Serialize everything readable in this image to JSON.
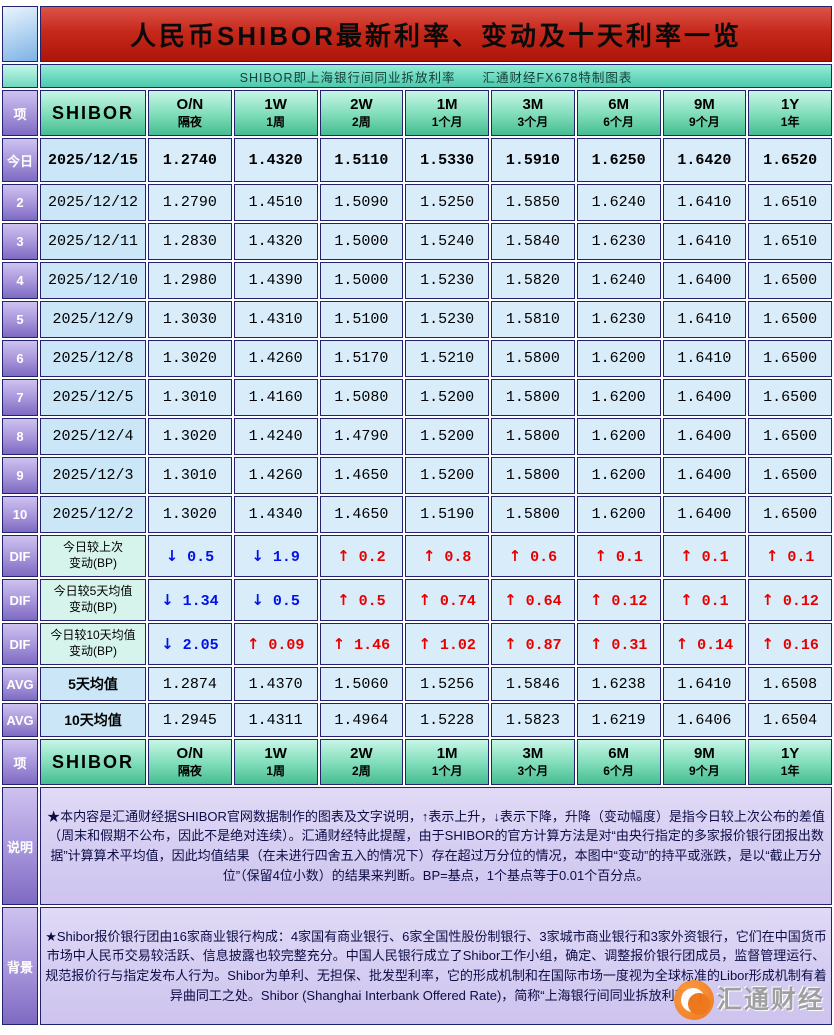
{
  "title": "人民币SHIBOR最新利率、变动及十天利率一览",
  "subtitle": "SHIBOR即上海银行间同业拆放利率　　汇通财经FX678特制图表",
  "labels": {
    "corner": "项",
    "shibor": "SHIBOR"
  },
  "colors": {
    "up_red": "#e80000",
    "down_blue": "#0012e8",
    "title_red": "#c5291c",
    "header_teal": "#46bd92",
    "label_purple": "#7e6ac2",
    "cell_blue": "#d8ecf9",
    "watermark_orange": "#ef7412"
  },
  "chart_data": {
    "type": "table",
    "title": "人民币SHIBOR最新利率、变动及十天利率一览",
    "tenors": [
      {
        "code": "O/N",
        "name": "隔夜"
      },
      {
        "code": "1W",
        "name": "1周"
      },
      {
        "code": "2W",
        "name": "2周"
      },
      {
        "code": "1M",
        "name": "1个月"
      },
      {
        "code": "3M",
        "name": "3个月"
      },
      {
        "code": "6M",
        "name": "6个月"
      },
      {
        "code": "9M",
        "name": "9个月"
      },
      {
        "code": "1Y",
        "name": "1年"
      }
    ],
    "rate_rows": [
      {
        "row_label": "今日",
        "date": "2025/12/15",
        "is_today": true,
        "values": [
          "1.2740",
          "1.4320",
          "1.5110",
          "1.5330",
          "1.5910",
          "1.6250",
          "1.6420",
          "1.6520"
        ]
      },
      {
        "row_label": "2",
        "date": "2025/12/12",
        "values": [
          "1.2790",
          "1.4510",
          "1.5090",
          "1.5250",
          "1.5850",
          "1.6240",
          "1.6410",
          "1.6510"
        ]
      },
      {
        "row_label": "3",
        "date": "2025/12/11",
        "values": [
          "1.2830",
          "1.4320",
          "1.5000",
          "1.5240",
          "1.5840",
          "1.6230",
          "1.6410",
          "1.6510"
        ]
      },
      {
        "row_label": "4",
        "date": "2025/12/10",
        "values": [
          "1.2980",
          "1.4390",
          "1.5000",
          "1.5230",
          "1.5820",
          "1.6240",
          "1.6400",
          "1.6500"
        ]
      },
      {
        "row_label": "5",
        "date": "2025/12/9",
        "values": [
          "1.3030",
          "1.4310",
          "1.5100",
          "1.5230",
          "1.5810",
          "1.6230",
          "1.6410",
          "1.6500"
        ]
      },
      {
        "row_label": "6",
        "date": "2025/12/8",
        "values": [
          "1.3020",
          "1.4260",
          "1.5170",
          "1.5210",
          "1.5800",
          "1.6200",
          "1.6410",
          "1.6500"
        ]
      },
      {
        "row_label": "7",
        "date": "2025/12/5",
        "values": [
          "1.3010",
          "1.4160",
          "1.5080",
          "1.5200",
          "1.5800",
          "1.6200",
          "1.6400",
          "1.6500"
        ]
      },
      {
        "row_label": "8",
        "date": "2025/12/4",
        "values": [
          "1.3020",
          "1.4240",
          "1.4790",
          "1.5200",
          "1.5800",
          "1.6200",
          "1.6400",
          "1.6500"
        ]
      },
      {
        "row_label": "9",
        "date": "2025/12/3",
        "values": [
          "1.3010",
          "1.4260",
          "1.4650",
          "1.5200",
          "1.5800",
          "1.6200",
          "1.6400",
          "1.6500"
        ]
      },
      {
        "row_label": "10",
        "date": "2025/12/2",
        "values": [
          "1.3020",
          "1.4340",
          "1.4650",
          "1.5190",
          "1.5800",
          "1.6200",
          "1.6400",
          "1.6500"
        ]
      }
    ],
    "diff_rows": [
      {
        "row_label": "DIF",
        "name": "今日较上次\n变动(BP)",
        "changes": [
          {
            "dir": "down",
            "bp": "0.5"
          },
          {
            "dir": "down",
            "bp": "1.9"
          },
          {
            "dir": "up",
            "bp": "0.2"
          },
          {
            "dir": "up",
            "bp": "0.8"
          },
          {
            "dir": "up",
            "bp": "0.6"
          },
          {
            "dir": "up",
            "bp": "0.1"
          },
          {
            "dir": "up",
            "bp": "0.1"
          },
          {
            "dir": "up",
            "bp": "0.1"
          }
        ]
      },
      {
        "row_label": "DIF",
        "name": "今日较5天均值\n变动(BP)",
        "changes": [
          {
            "dir": "down",
            "bp": "1.34"
          },
          {
            "dir": "down",
            "bp": "0.5"
          },
          {
            "dir": "up",
            "bp": "0.5"
          },
          {
            "dir": "up",
            "bp": "0.74"
          },
          {
            "dir": "up",
            "bp": "0.64"
          },
          {
            "dir": "up",
            "bp": "0.12"
          },
          {
            "dir": "up",
            "bp": "0.1"
          },
          {
            "dir": "up",
            "bp": "0.12"
          }
        ]
      },
      {
        "row_label": "DIF",
        "name": "今日较10天均值\n变动(BP)",
        "changes": [
          {
            "dir": "down",
            "bp": "2.05"
          },
          {
            "dir": "up",
            "bp": "0.09"
          },
          {
            "dir": "up",
            "bp": "1.46"
          },
          {
            "dir": "up",
            "bp": "1.02"
          },
          {
            "dir": "up",
            "bp": "0.87"
          },
          {
            "dir": "up",
            "bp": "0.31"
          },
          {
            "dir": "up",
            "bp": "0.14"
          },
          {
            "dir": "up",
            "bp": "0.16"
          }
        ]
      }
    ],
    "avg_rows": [
      {
        "row_label": "AVG",
        "name": "5天均值",
        "values": [
          "1.2874",
          "1.4370",
          "1.5060",
          "1.5256",
          "1.5846",
          "1.6238",
          "1.6410",
          "1.6508"
        ]
      },
      {
        "row_label": "AVG",
        "name": "10天均值",
        "values": [
          "1.2945",
          "1.4311",
          "1.4964",
          "1.5228",
          "1.5823",
          "1.6219",
          "1.6406",
          "1.6504"
        ]
      }
    ]
  },
  "notes": [
    {
      "label": "说明",
      "text": "★本内容是汇通财经据SHIBOR官网数据制作的图表及文字说明，↑表示上升，↓表示下降，升降（变动幅度）是指今日较上次公布的差值（周末和假期不公布，因此不是绝对连续）。汇通财经特此提醒，由于SHIBOR的官方计算方法是对“由央行指定的多家报价银行团报出数据”计算算术平均值，因此均值结果（在未进行四舍五入的情况下）存在超过万分位的情况，本图中“变动”的持平或涨跌，是以“截止万分位”（保留4位小数）的结果来判断。BP=基点，1个基点等于0.01个百分点。"
    },
    {
      "label": "背景",
      "text": "★Shibor报价银行团由16家商业银行构成：4家国有商业银行、6家全国性股份制银行、3家城市商业银行和3家外资银行，它们在中国货币市场中人民币交易较活跃、信息披露也较完整充分。中国人民银行成立了Shibor工作小组，确定、调整报价银行团成员，监督管理运行、规范报价行与指定发布人行为。Shibor为单利、无担保、批发型利率，它的形成机制和在国际市场一度视为全球标准的Libor形成机制有着异曲同工之处。Shibor (Shanghai Interbank Offered Rate)，简称“上海银行间同业拆放利率。”]"
    }
  ],
  "watermark": {
    "text": "汇通财经"
  }
}
